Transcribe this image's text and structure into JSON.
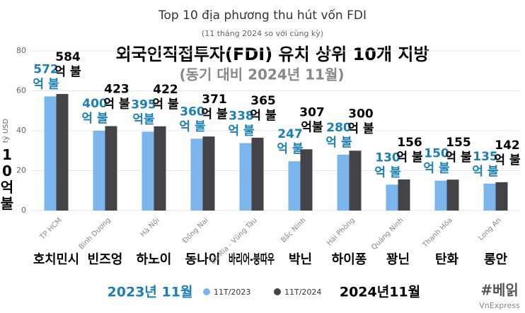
{
  "chart_data": {
    "type": "bar",
    "title": "Top 10 địa phương thu hút vốn FDI",
    "subtitle": "(11 tháng 2024 so với cùng kỳ)",
    "y_label": "tỷ USD",
    "categories": [
      "TP HCM",
      "Bình Dương",
      "Hà Nội",
      "Đồng Nai",
      "Bà Rịa - Vũng Tàu",
      "Bắc Ninh",
      "Hải Phòng",
      "Quảng Ninh",
      "Thanh Hóa",
      "Long An"
    ],
    "series": [
      {
        "name": "11T/2023",
        "color": "#7cb5ec",
        "values": [
          57.2,
          40.0,
          39.5,
          36.0,
          33.8,
          24.7,
          28.0,
          13.0,
          15.0,
          13.5
        ],
        "value_labels": [
          "572억 불",
          "400억 불",
          "395억불",
          "360억 불",
          "338억 불",
          "247억 불",
          "280억 불",
          "130억 불",
          "150억 불",
          "135억 불"
        ]
      },
      {
        "name": "11T/2024",
        "color": "#434348",
        "values": [
          58.4,
          42.3,
          42.2,
          37.1,
          36.5,
          30.7,
          30.0,
          15.6,
          15.5,
          14.2
        ],
        "value_labels": [
          "584억 불",
          "423억 불",
          "422억 불",
          "371억 불",
          "365억 불",
          "307억불",
          "300억 불",
          "156억 불",
          "155억 불",
          "142억 불"
        ]
      }
    ],
    "ylim": [
      0,
      80
    ],
    "yticks": [
      0,
      20,
      40,
      60,
      80
    ],
    "grid": true,
    "source": "VnExpress"
  },
  "overlay": {
    "title": "외국인직접투자(FDI) 유치 상위 10개 지방",
    "subtitle": "(동기 대비 2024년 11월)",
    "unit": "10억불",
    "categories": [
      "호치민시",
      "빈즈엉",
      "하노이",
      "동나이",
      "바리어-붕따우",
      "박닌",
      "하이퐁",
      "꽝닌",
      "탄화",
      "롱안"
    ],
    "legend": [
      "2023년 11월",
      "2024년11월"
    ],
    "logo": "#베읽"
  }
}
